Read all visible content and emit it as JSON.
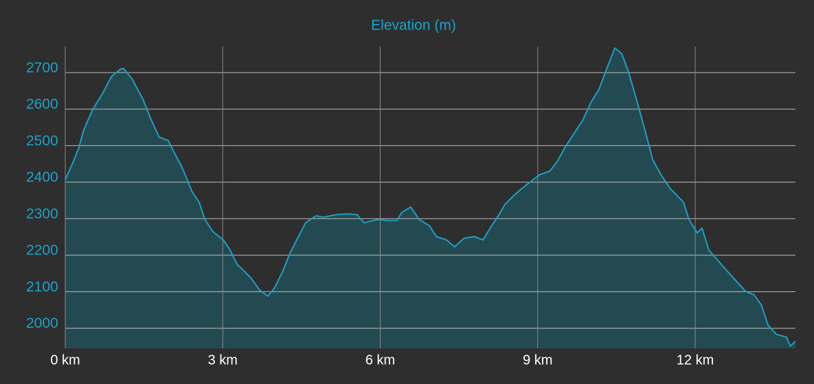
{
  "chart_data": {
    "type": "area",
    "title": "Elevation (m)",
    "color": "#1f9fc4",
    "fill": "#244a51",
    "grid": true,
    "xlim": [
      0,
      13.91
    ],
    "ylim": [
      1945,
      2771
    ],
    "xticks": [
      {
        "value": 0,
        "label": "0 km"
      },
      {
        "value": 3,
        "label": "3 km"
      },
      {
        "value": 6,
        "label": "6 km"
      },
      {
        "value": 9,
        "label": "9 km"
      },
      {
        "value": 12,
        "label": "12 km"
      }
    ],
    "yticks": [
      2000,
      2100,
      2200,
      2300,
      2400,
      2500,
      2600,
      2700
    ],
    "x": [
      0,
      0.13,
      0.26,
      0.35,
      0.52,
      0.72,
      0.88,
      1.05,
      1.11,
      1.27,
      1.48,
      1.64,
      1.79,
      1.96,
      2.09,
      2.23,
      2.42,
      2.55,
      2.66,
      2.81,
      3.01,
      3.14,
      3.27,
      3.53,
      3.7,
      3.86,
      3.99,
      4.15,
      4.28,
      4.41,
      4.58,
      4.78,
      4.91,
      5.17,
      5.37,
      5.56,
      5.69,
      5.96,
      6.15,
      6.32,
      6.41,
      6.58,
      6.74,
      6.94,
      7.07,
      7.26,
      7.42,
      7.59,
      7.79,
      7.96,
      8.12,
      8.25,
      8.38,
      8.55,
      8.7,
      8.86,
      9.03,
      9.23,
      9.38,
      9.52,
      9.69,
      9.86,
      10.01,
      10.17,
      10.34,
      10.47,
      10.6,
      10.73,
      10.9,
      11.06,
      11.19,
      11.35,
      11.52,
      11.65,
      11.78,
      11.88,
      12.04,
      12.13,
      12.26,
      12.43,
      12.6,
      12.76,
      12.96,
      13.12,
      13.26,
      13.39,
      13.55,
      13.74,
      13.81,
      13.91
    ],
    "values": [
      2407,
      2448,
      2495,
      2542,
      2598,
      2645,
      2689,
      2709,
      2711,
      2683,
      2627,
      2570,
      2523,
      2514,
      2477,
      2439,
      2373,
      2345,
      2298,
      2265,
      2242,
      2214,
      2176,
      2139,
      2105,
      2088,
      2111,
      2158,
      2205,
      2242,
      2289,
      2308,
      2304,
      2311,
      2313,
      2311,
      2289,
      2298,
      2295,
      2295,
      2317,
      2332,
      2298,
      2280,
      2251,
      2242,
      2223,
      2246,
      2251,
      2242,
      2280,
      2308,
      2340,
      2364,
      2383,
      2401,
      2420,
      2430,
      2458,
      2495,
      2533,
      2570,
      2617,
      2655,
      2720,
      2767,
      2752,
      2702,
      2617,
      2533,
      2462,
      2420,
      2383,
      2364,
      2345,
      2298,
      2261,
      2274,
      2214,
      2186,
      2158,
      2133,
      2101,
      2092,
      2064,
      2008,
      1983,
      1976,
      1951,
      1964
    ]
  }
}
